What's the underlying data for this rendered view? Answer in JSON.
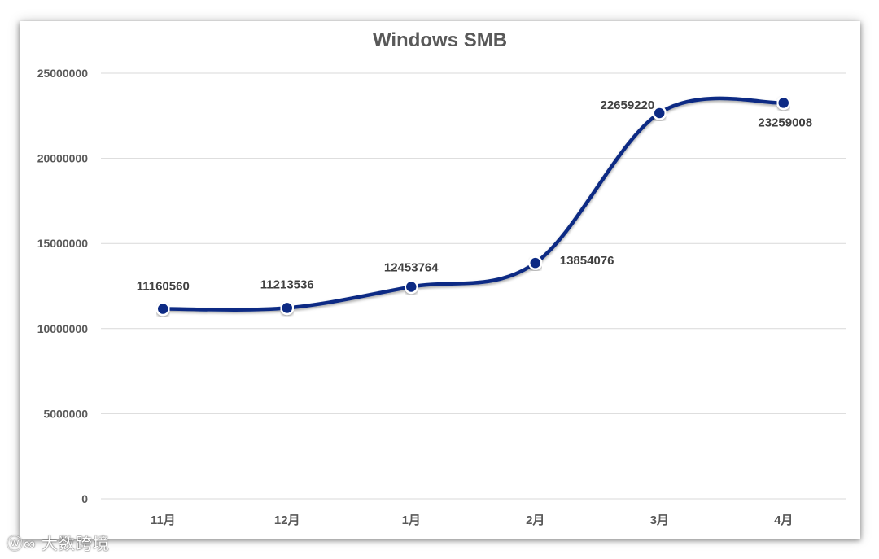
{
  "chart_data": {
    "type": "line",
    "title": "Windows SMB",
    "categories": [
      "11月",
      "12月",
      "1月",
      "2月",
      "3月",
      "4月"
    ],
    "series": [
      {
        "values": [
          11160560,
          11213536,
          12453764,
          13854076,
          22659220,
          23259008
        ],
        "color": "#0b2c84",
        "smooth": true,
        "marker": "circle"
      }
    ],
    "data_labels": [
      "11160560",
      "11213536",
      "12453764",
      "13854076",
      "22659220",
      "23259008"
    ],
    "yticks": [
      "0",
      "5000000",
      "10000000",
      "15000000",
      "20000000",
      "25000000"
    ],
    "ylim": [
      0,
      25000000
    ],
    "xlabel": "",
    "ylabel": "",
    "grid": "horizontal",
    "legend": "none"
  },
  "watermark": "大数跨境"
}
